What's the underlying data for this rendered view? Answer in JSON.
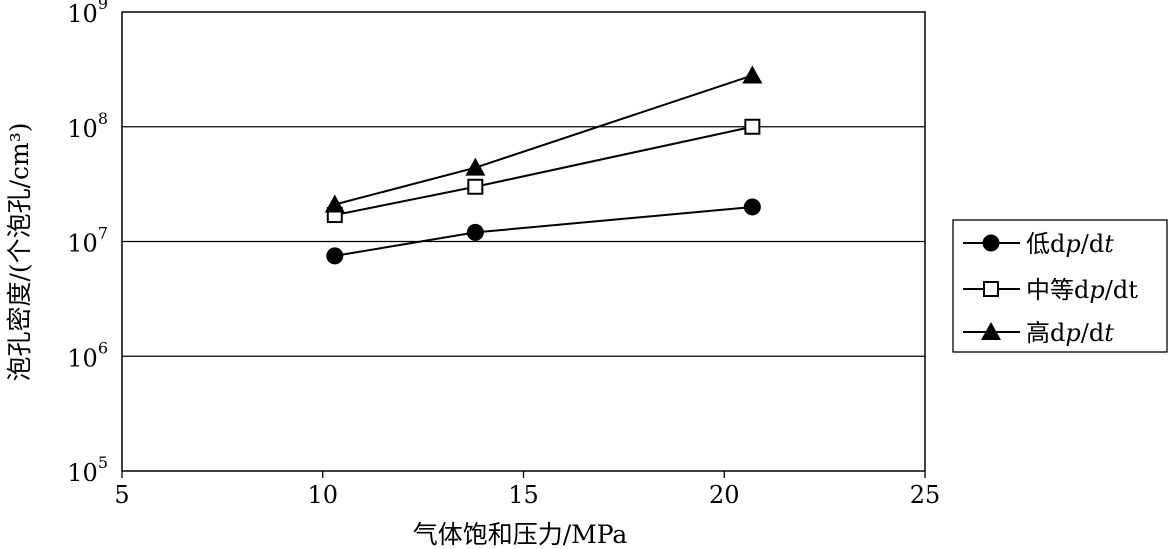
{
  "chart_data": {
    "type": "line",
    "title": "",
    "xlabel": "气体饱和压力/MPa",
    "ylabel": "泡孔密度/(个泡孔/cm³)",
    "xlim": [
      5,
      25
    ],
    "ylim": [
      100000,
      1000000000
    ],
    "yscale": "log",
    "grid": "horizontal lines at decades",
    "legend_position": "right",
    "x_ticks": [
      "5",
      "10",
      "15",
      "20",
      "25"
    ],
    "y_ticks": [
      {
        "base": "10",
        "exp": "5"
      },
      {
        "base": "10",
        "exp": "6"
      },
      {
        "base": "10",
        "exp": "7"
      },
      {
        "base": "10",
        "exp": "8"
      },
      {
        "base": "10",
        "exp": "9"
      }
    ],
    "series": [
      {
        "name": "低dp/dt",
        "label_cn": "低",
        "label_d1": "d",
        "label_p": "p",
        "label_slash": "/d",
        "label_t": "t",
        "marker": "filled-circle",
        "x": [
          10.3,
          13.8,
          20.7
        ],
        "y": [
          7500000,
          12000000,
          20000000
        ]
      },
      {
        "name": "中等dp/dt",
        "label_cn": "中等",
        "label_d1": "d",
        "label_p": "p",
        "label_slash": "/dt",
        "label_t": "",
        "marker": "open-square",
        "x": [
          10.3,
          13.8,
          20.7
        ],
        "y": [
          17000000,
          30000000,
          100000000
        ]
      },
      {
        "name": "高dp/dt",
        "label_cn": "高",
        "label_d1": "d",
        "label_p": "p",
        "label_slash": "/d",
        "label_t": "t",
        "marker": "filled-triangle",
        "x": [
          10.3,
          13.8,
          20.7
        ],
        "y": [
          21000000,
          44000000,
          280000000
        ]
      }
    ]
  }
}
